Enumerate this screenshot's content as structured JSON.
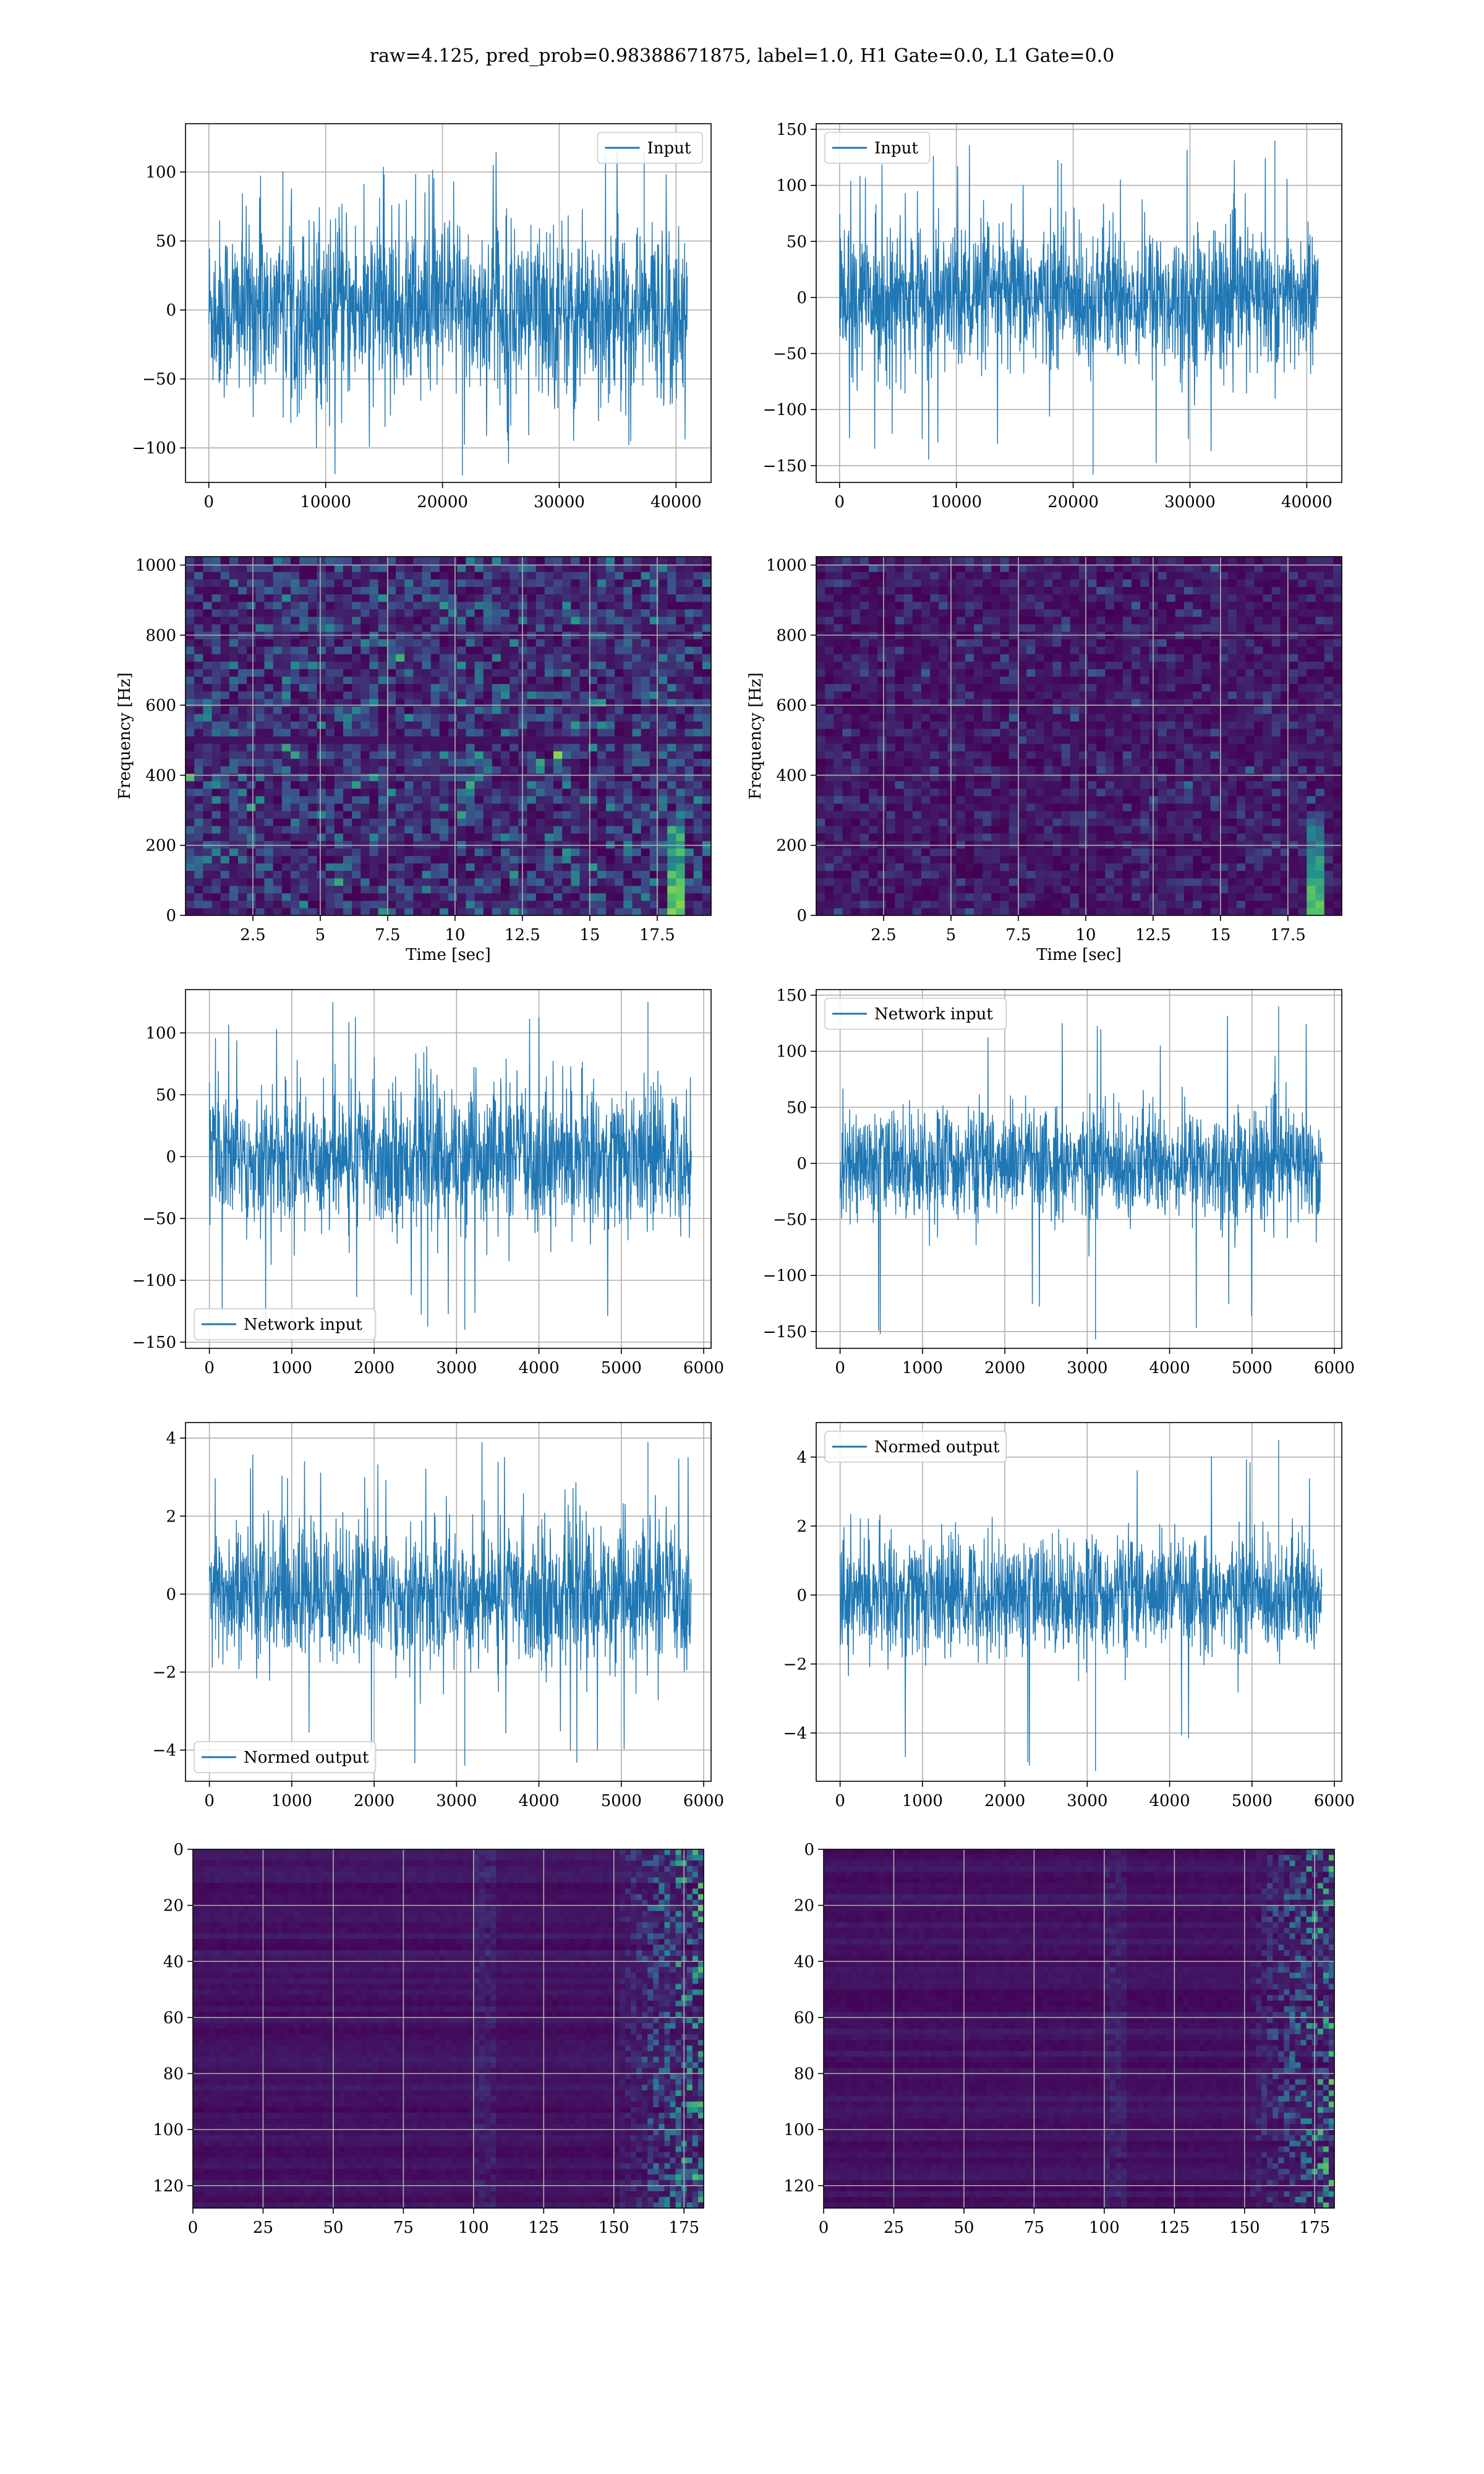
{
  "figure": {
    "suptitle": "raw=4.125, pred_prob=0.98388671875, label=1.0, H1 Gate=0.0, L1 Gate=0.0"
  },
  "colors": {
    "line": "#1f77b4",
    "grid": "#b0b0b0",
    "axes_edge": "#000000",
    "viridis_low": "#440154",
    "viridis_mid": "#21918c",
    "viridis_high": "#fde725"
  },
  "chart_data": [
    {
      "id": "h1-input",
      "type": "line",
      "title": "",
      "xlabel": "",
      "ylabel": "",
      "xlim": [
        -2000,
        43000
      ],
      "ylim": [
        -125,
        135
      ],
      "xticks": [
        0,
        10000,
        20000,
        30000,
        40000
      ],
      "yticks": [
        -100,
        -50,
        0,
        50,
        100
      ],
      "grid": true,
      "legend": "top-right",
      "series": [
        {
          "name": "Input",
          "x_range": [
            0,
            40960
          ],
          "std": 32,
          "peak_max": 115,
          "peak_min": -120
        }
      ]
    },
    {
      "id": "l1-input",
      "type": "line",
      "title": "",
      "xlabel": "",
      "ylabel": "",
      "xlim": [
        -2000,
        43000
      ],
      "ylim": [
        -165,
        155
      ],
      "xticks": [
        0,
        10000,
        20000,
        30000,
        40000
      ],
      "yticks": [
        -150,
        -100,
        -50,
        0,
        50,
        100,
        150
      ],
      "grid": true,
      "legend": "top-left",
      "series": [
        {
          "name": "Input",
          "x_range": [
            0,
            40960
          ],
          "std": 32,
          "peak_max": 140,
          "peak_min": -158
        }
      ]
    },
    {
      "id": "h1-spectrogram",
      "type": "heatmap",
      "title": "",
      "xlabel": "Time [sec]",
      "ylabel": "Frequency [Hz]",
      "xlim": [
        0,
        19.5
      ],
      "ylim": [
        0,
        1024
      ],
      "xticks": [
        2.5,
        5.0,
        7.5,
        10.0,
        12.5,
        15.0,
        17.5
      ],
      "yticks": [
        0,
        200,
        400,
        600,
        800,
        1000
      ],
      "grid": true,
      "colormap": "viridis",
      "chirp_time": 18.2,
      "noise_level": 0.35
    },
    {
      "id": "l1-spectrogram",
      "type": "heatmap",
      "title": "",
      "xlabel": "Time [sec]",
      "ylabel": "Frequency [Hz]",
      "xlim": [
        0,
        19.5
      ],
      "ylim": [
        0,
        1024
      ],
      "xticks": [
        2.5,
        5.0,
        7.5,
        10.0,
        12.5,
        15.0,
        17.5
      ],
      "yticks": [
        0,
        200,
        400,
        600,
        800,
        1000
      ],
      "grid": true,
      "colormap": "viridis",
      "chirp_time": 18.4,
      "noise_level": 0.18
    },
    {
      "id": "h1-network-input",
      "type": "line",
      "title": "",
      "xlabel": "",
      "ylabel": "",
      "xlim": [
        -290,
        6090
      ],
      "ylim": [
        -155,
        135
      ],
      "xticks": [
        0,
        1000,
        2000,
        3000,
        4000,
        5000,
        6000
      ],
      "yticks": [
        -150,
        -100,
        -50,
        0,
        50,
        100
      ],
      "grid": true,
      "legend": "bottom-left",
      "series": [
        {
          "name": "Network input",
          "x_range": [
            0,
            5850
          ],
          "std": 28,
          "peak_max": 125,
          "peak_min": -140
        }
      ]
    },
    {
      "id": "l1-network-input",
      "type": "line",
      "title": "",
      "xlabel": "",
      "ylabel": "",
      "xlim": [
        -290,
        6090
      ],
      "ylim": [
        -165,
        155
      ],
      "xticks": [
        0,
        1000,
        2000,
        3000,
        4000,
        5000,
        6000
      ],
      "yticks": [
        -150,
        -100,
        -50,
        0,
        50,
        100,
        150
      ],
      "grid": true,
      "legend": "top-left",
      "series": [
        {
          "name": "Network input",
          "x_range": [
            0,
            5850
          ],
          "std": 25,
          "peak_max": 140,
          "peak_min": -157
        }
      ]
    },
    {
      "id": "h1-normed-output",
      "type": "line",
      "title": "",
      "xlabel": "",
      "ylabel": "",
      "xlim": [
        -290,
        6090
      ],
      "ylim": [
        -4.8,
        4.4
      ],
      "xticks": [
        0,
        1000,
        2000,
        3000,
        4000,
        5000,
        6000
      ],
      "yticks": [
        -4,
        -2,
        0,
        2,
        4
      ],
      "grid": true,
      "legend": "bottom-left",
      "series": [
        {
          "name": "Normed output",
          "x_range": [
            0,
            5850
          ],
          "std": 0.9,
          "peak_max": 3.9,
          "peak_min": -4.4
        }
      ]
    },
    {
      "id": "l1-normed-output",
      "type": "line",
      "title": "",
      "xlabel": "",
      "ylabel": "",
      "xlim": [
        -290,
        6090
      ],
      "ylim": [
        -5.4,
        5.0
      ],
      "xticks": [
        0,
        1000,
        2000,
        3000,
        4000,
        5000,
        6000
      ],
      "yticks": [
        -4,
        -2,
        0,
        2,
        4
      ],
      "grid": true,
      "legend": "top-left",
      "series": [
        {
          "name": "Normed output",
          "x_range": [
            0,
            5850
          ],
          "std": 0.85,
          "peak_max": 4.5,
          "peak_min": -5.1
        }
      ]
    },
    {
      "id": "h1-feature-map",
      "type": "heatmap",
      "title": "",
      "xlabel": "",
      "ylabel": "",
      "xlim": [
        0,
        182
      ],
      "ylim": [
        128,
        0
      ],
      "xticks": [
        0,
        25,
        50,
        75,
        100,
        125,
        150,
        175
      ],
      "yticks": [
        0,
        20,
        40,
        60,
        80,
        100,
        120
      ],
      "grid": true,
      "colormap": "viridis",
      "active_from": 150
    },
    {
      "id": "l1-feature-map",
      "type": "heatmap",
      "title": "",
      "xlabel": "",
      "ylabel": "",
      "xlim": [
        0,
        182
      ],
      "ylim": [
        128,
        0
      ],
      "xticks": [
        0,
        25,
        50,
        75,
        100,
        125,
        150,
        175
      ],
      "yticks": [
        0,
        20,
        40,
        60,
        80,
        100,
        120
      ],
      "grid": true,
      "colormap": "viridis",
      "active_from": 150
    }
  ]
}
